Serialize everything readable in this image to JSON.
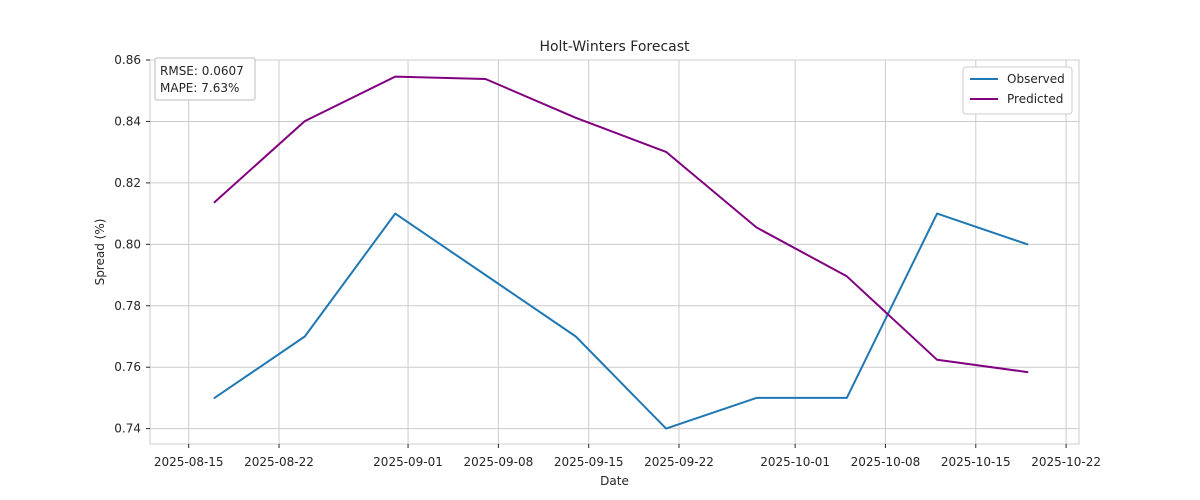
{
  "chart_data": {
    "type": "line",
    "title": "Holt-Winters Forecast",
    "xlabel": "Date",
    "ylabel": "Spread (%)",
    "x_ticks": [
      "2025-08-15",
      "2025-08-22",
      "2025-09-01",
      "2025-09-08",
      "2025-09-15",
      "2025-09-22",
      "2025-10-01",
      "2025-10-08",
      "2025-10-15",
      "2025-10-22"
    ],
    "xlim": [
      "2025-08-12",
      "2025-10-23"
    ],
    "ylim": [
      0.735,
      0.86
    ],
    "y_ticks": [
      0.74,
      0.76,
      0.78,
      0.8,
      0.82,
      0.84,
      0.86
    ],
    "y_tick_labels": [
      "0.74",
      "0.76",
      "0.78",
      "0.80",
      "0.82",
      "0.84",
      "0.86"
    ],
    "grid": true,
    "legend_position": "top-right",
    "x": [
      "2025-08-17",
      "2025-08-24",
      "2025-08-31",
      "2025-09-07",
      "2025-09-14",
      "2025-09-21",
      "2025-09-28",
      "2025-10-05",
      "2025-10-12",
      "2025-10-19"
    ],
    "series": [
      {
        "name": "Observed",
        "color": "#1f77b4",
        "values": [
          0.75,
          0.77,
          0.81,
          0.79,
          0.77,
          0.74,
          0.75,
          0.75,
          0.81,
          0.8
        ]
      },
      {
        "name": "Predicted",
        "color": "#800080",
        "values": [
          0.8137,
          0.8401,
          0.8546,
          0.8538,
          0.8412,
          0.8301,
          0.8055,
          0.7896,
          0.7624,
          0.7584
        ]
      }
    ],
    "annotation": {
      "rmse": "RMSE: 0.0607",
      "mape": "MAPE: 7.63%"
    }
  }
}
